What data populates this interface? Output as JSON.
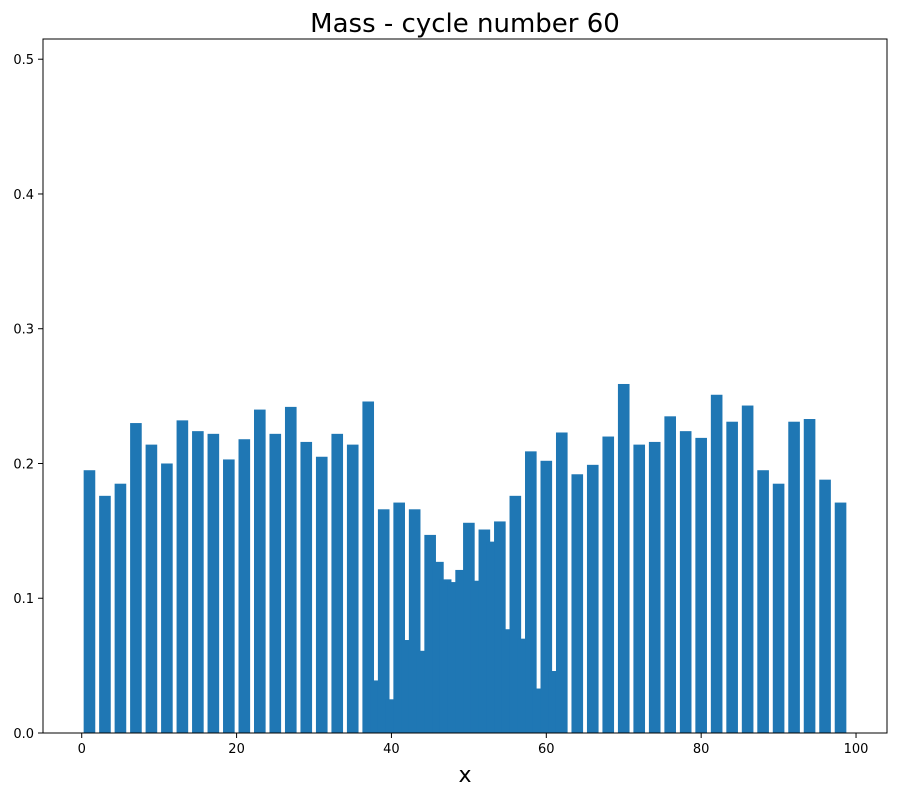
{
  "chart_data": {
    "type": "bar",
    "title": "Mass - cycle number 60",
    "xlabel": "x",
    "ylabel": "",
    "xlim": [
      -5,
      104
    ],
    "ylim": [
      0,
      0.515
    ],
    "xticks": [
      0,
      20,
      40,
      60,
      80,
      100
    ],
    "yticks": [
      0.0,
      0.1,
      0.2,
      0.3,
      0.4,
      0.5
    ],
    "grid": false,
    "bar_color": "#1f77b4",
    "bar_width": 1.5,
    "x": [
      1,
      3,
      5,
      7,
      9,
      11,
      13,
      15,
      17,
      19,
      21,
      23,
      25,
      27,
      29,
      31,
      33,
      35,
      37,
      38,
      39,
      40,
      41,
      42,
      43,
      44,
      45,
      46,
      47,
      48,
      49,
      50,
      51,
      52,
      53,
      54,
      55,
      56,
      57,
      58,
      59,
      60,
      61,
      62,
      64,
      66,
      68,
      70,
      72,
      74,
      76,
      78,
      80,
      82,
      84,
      86,
      88,
      90,
      92,
      94,
      96,
      98
    ],
    "values": [
      0.195,
      0.176,
      0.185,
      0.23,
      0.214,
      0.2,
      0.232,
      0.224,
      0.222,
      0.203,
      0.218,
      0.24,
      0.222,
      0.242,
      0.216,
      0.205,
      0.222,
      0.214,
      0.246,
      0.039,
      0.166,
      0.025,
      0.171,
      0.069,
      0.166,
      0.061,
      0.147,
      0.127,
      0.114,
      0.112,
      0.121,
      0.156,
      0.113,
      0.151,
      0.142,
      0.157,
      0.077,
      0.176,
      0.07,
      0.209,
      0.033,
      0.202,
      0.046,
      0.223,
      0.192,
      0.199,
      0.22,
      0.259,
      0.214,
      0.216,
      0.235,
      0.224,
      0.219,
      0.251,
      0.231,
      0.243,
      0.195,
      0.185,
      0.231,
      0.233,
      0.188,
      0.171
    ]
  }
}
